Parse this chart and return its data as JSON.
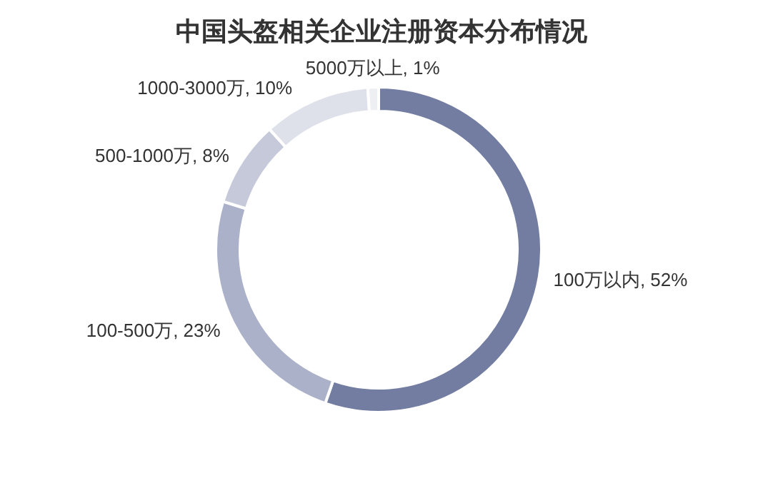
{
  "chart_data": {
    "type": "donut",
    "title": "中国头盔相关企业注册资本分布情况",
    "categories": [
      "100万以内",
      "100-500万",
      "500-1000万",
      "1000-3000万",
      "5000万以上"
    ],
    "values": [
      52,
      23,
      8,
      10,
      1
    ],
    "value_labels": [
      "52%",
      "23%",
      "8%",
      "10%",
      "1%"
    ],
    "data_labels": true,
    "colors": [
      "#737da1",
      "#abb1c8",
      "#c6c9d9",
      "#dfe1ea",
      "#eeeff3"
    ]
  }
}
